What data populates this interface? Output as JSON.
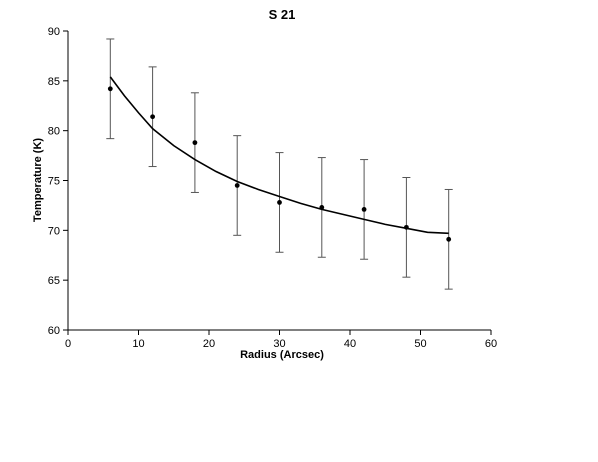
{
  "chart_data": {
    "type": "scatter",
    "title": "S 21",
    "xlabel": "Radius (Arcsec)",
    "ylabel": "Temperature (K)",
    "xlim": [
      0,
      60
    ],
    "ylim": [
      60,
      90
    ],
    "xticks": [
      0,
      10,
      20,
      30,
      40,
      50,
      60
    ],
    "yticks": [
      60,
      65,
      70,
      75,
      80,
      85,
      90
    ],
    "grid": false,
    "colors": {
      "axis": "#000000",
      "points": "#000000",
      "errorbars": "#555555",
      "fit": "#000000"
    },
    "points": [
      {
        "x": 6,
        "y": 84.2,
        "err": 5.0
      },
      {
        "x": 12,
        "y": 81.4,
        "err": 5.0
      },
      {
        "x": 18,
        "y": 78.8,
        "err": 5.0
      },
      {
        "x": 24,
        "y": 74.5,
        "err": 5.0
      },
      {
        "x": 30,
        "y": 72.8,
        "err": 5.0
      },
      {
        "x": 36,
        "y": 72.3,
        "err": 5.0
      },
      {
        "x": 42,
        "y": 72.1,
        "err": 5.0
      },
      {
        "x": 48,
        "y": 70.3,
        "err": 5.0
      },
      {
        "x": 54,
        "y": 69.1,
        "err": 5.0
      }
    ],
    "fit_curve": {
      "x": [
        6,
        8,
        10,
        12,
        15,
        18,
        21,
        24,
        27,
        30,
        33,
        36,
        39,
        42,
        45,
        48,
        51,
        54
      ],
      "y": [
        85.4,
        83.5,
        81.8,
        80.2,
        78.5,
        77.1,
        75.9,
        74.9,
        74.1,
        73.4,
        72.7,
        72.1,
        71.6,
        71.1,
        70.6,
        70.2,
        69.8,
        69.7
      ]
    }
  }
}
